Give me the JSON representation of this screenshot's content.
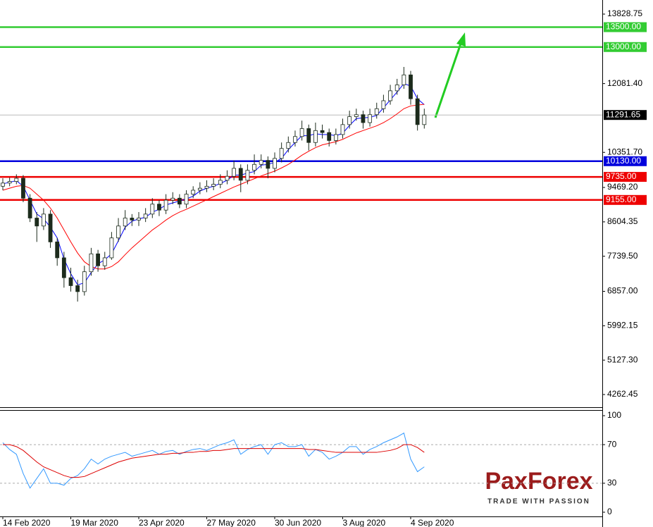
{
  "chart_data": [
    {
      "type": "candlestick",
      "categories": [
        "14 Feb 2020",
        null,
        null,
        null,
        null,
        null,
        null,
        null,
        null,
        null,
        "19 Mar 2020",
        null,
        null,
        null,
        null,
        null,
        null,
        null,
        null,
        null,
        "23 Apr 2020",
        null,
        null,
        null,
        null,
        null,
        null,
        null,
        null,
        null,
        "27 May 2020",
        null,
        null,
        null,
        null,
        null,
        null,
        null,
        null,
        null,
        "30 Jun 2020",
        null,
        null,
        null,
        null,
        null,
        null,
        null,
        null,
        null,
        "3 Aug 2020",
        null,
        null,
        null,
        null,
        null,
        null,
        null,
        null,
        null,
        "4 Sep 2020",
        null,
        null
      ],
      "open": [
        9500,
        9580,
        9620,
        9700,
        9200,
        8700,
        8500,
        8800,
        8100,
        7700,
        7200,
        7000,
        6850,
        7350,
        7800,
        7500,
        7700,
        8200,
        8500,
        8700,
        8650,
        8700,
        8800,
        9050,
        8900,
        9150,
        9200,
        9050,
        9300,
        9400,
        9450,
        9500,
        9550,
        9650,
        9750,
        9950,
        9650,
        9900,
        10050,
        10150,
        9950,
        10200,
        10450,
        10600,
        10750,
        10950,
        10600,
        10900,
        10850,
        10650,
        10800,
        11050,
        11250,
        11300,
        11100,
        11300,
        11450,
        11650,
        11900,
        12050,
        12300,
        11700,
        11050
      ],
      "high": [
        9700,
        9720,
        9800,
        9780,
        9300,
        8850,
        8950,
        8900,
        8200,
        7850,
        7450,
        7150,
        7500,
        7950,
        7900,
        7850,
        8350,
        8700,
        8900,
        8800,
        8850,
        8950,
        9200,
        9150,
        9300,
        9350,
        9300,
        9400,
        9500,
        9600,
        9650,
        9700,
        9800,
        9900,
        10150,
        10050,
        10050,
        10300,
        10300,
        10250,
        10350,
        10600,
        10750,
        10900,
        11150,
        11050,
        11100,
        11050,
        10950,
        10950,
        11200,
        11400,
        11450,
        11400,
        11450,
        11600,
        11800,
        12050,
        12200,
        12500,
        12400,
        11800,
        11450
      ],
      "low": [
        9400,
        9500,
        9550,
        9100,
        8600,
        8100,
        8400,
        7950,
        7500,
        6950,
        6850,
        6600,
        6750,
        7250,
        7350,
        7400,
        7650,
        8100,
        8400,
        8500,
        8500,
        8600,
        8700,
        8750,
        8800,
        9050,
        8950,
        8950,
        9200,
        9300,
        9350,
        9400,
        9450,
        9550,
        9650,
        9350,
        9550,
        9800,
        9950,
        9700,
        9850,
        10100,
        10350,
        10500,
        10650,
        10400,
        10500,
        10700,
        10500,
        10550,
        10700,
        10950,
        11150,
        10950,
        11000,
        11200,
        11350,
        11550,
        11800,
        11950,
        11550,
        10900,
        10950
      ],
      "close": [
        9580,
        9620,
        9700,
        9200,
        8700,
        8500,
        8800,
        8100,
        7700,
        7200,
        7000,
        6850,
        7350,
        7800,
        7500,
        7700,
        8200,
        8500,
        8700,
        8650,
        8700,
        8800,
        9050,
        8900,
        9150,
        9200,
        9050,
        9300,
        9400,
        9450,
        9500,
        9550,
        9650,
        9750,
        9950,
        9650,
        9900,
        10050,
        10150,
        9950,
        10200,
        10450,
        10600,
        10750,
        10950,
        10600,
        10900,
        10850,
        10650,
        10800,
        11050,
        11250,
        11300,
        11100,
        11300,
        11450,
        11650,
        11900,
        12050,
        12300,
        11700,
        11050,
        11291.65
      ],
      "up_color": "#ffffff",
      "down_color": "#1c2b1c",
      "wick_color": "#1c2b1c",
      "series": [
        {
          "color": "#0000ff",
          "values": [
            9560,
            9600,
            9640,
            9500,
            9150,
            8800,
            8680,
            8470,
            8200,
            7670,
            7300,
            7020,
            7070,
            7330,
            7550,
            7650,
            7800,
            8130,
            8470,
            8620,
            8680,
            8720,
            8850,
            8920,
            9030,
            9080,
            9130,
            9180,
            9250,
            9380,
            9450,
            9500,
            9570,
            9650,
            9780,
            9780,
            9830,
            9870,
            10030,
            10050,
            10100,
            10200,
            10420,
            10600,
            10770,
            10770,
            10820,
            10800,
            10800,
            10770,
            10830,
            11030,
            11200,
            11220,
            11230,
            11280,
            11470,
            11670,
            11870,
            12080,
            12020,
            11700,
            11550
          ]
        },
        {
          "color": "#ff0000",
          "values": [
            9400,
            9450,
            9500,
            9520,
            9450,
            9300,
            9150,
            8950,
            8700,
            8400,
            8100,
            7820,
            7600,
            7480,
            7420,
            7420,
            7480,
            7600,
            7780,
            7950,
            8100,
            8250,
            8400,
            8520,
            8650,
            8760,
            8850,
            8920,
            9000,
            9080,
            9160,
            9240,
            9320,
            9400,
            9480,
            9550,
            9620,
            9690,
            9760,
            9820,
            9880,
            9960,
            10050,
            10160,
            10280,
            10380,
            10470,
            10540,
            10580,
            10620,
            10680,
            10760,
            10840,
            10900,
            10960,
            11020,
            11100,
            11200,
            11320,
            11450,
            11520,
            11540,
            11560
          ]
        }
      ],
      "ylim": [
        3943,
        14183
      ],
      "yticks": [
        13828.75,
        {
          "value": 12081.4,
          "label": "12081.40"
        },
        {
          "value": 10351.7,
          "label": "10351.70"
        },
        {
          "value": 9469.2,
          "label": "9469.20"
        },
        8604.35,
        {
          "value": 7739.5,
          "label": "7739.50"
        },
        {
          "value": 6857,
          "label": "6857.00"
        },
        5992.15,
        {
          "value": 5127.3,
          "label": "5127.30"
        },
        4262.45
      ],
      "levels": [
        {
          "value": 13500,
          "label": "13500.00",
          "color": "#33cc33"
        },
        {
          "value": 13000,
          "label": "13000.00",
          "color": "#33cc33"
        },
        {
          "value": 10130,
          "label": "10130.00",
          "color": "#0000dd"
        },
        {
          "value": 9735,
          "label": "9735.00",
          "color": "#ee0000"
        },
        {
          "value": 9155,
          "label": "9155.00",
          "color": "#ee0000"
        }
      ],
      "current_price": 11291.65
    },
    {
      "type": "line",
      "series": [
        {
          "color": "#3399ff",
          "values": [
            72,
            65,
            60,
            40,
            25,
            35,
            45,
            30,
            30,
            28,
            35,
            38,
            45,
            55,
            50,
            55,
            58,
            60,
            62,
            58,
            60,
            62,
            64,
            60,
            63,
            64,
            60,
            63,
            65,
            66,
            64,
            67,
            70,
            72,
            75,
            60,
            65,
            68,
            70,
            60,
            70,
            72,
            68,
            68,
            70,
            58,
            65,
            62,
            55,
            58,
            62,
            68,
            68,
            60,
            65,
            68,
            72,
            75,
            78,
            82,
            55,
            42,
            47
          ]
        },
        {
          "color": "#dd0000",
          "values": [
            70,
            70,
            68,
            64,
            58,
            52,
            47,
            44,
            41,
            38,
            36,
            36,
            37,
            40,
            43,
            46,
            49,
            52,
            54,
            56,
            57,
            58,
            59,
            60,
            60,
            61,
            61,
            62,
            62,
            63,
            63,
            64,
            64,
            65,
            66,
            66,
            66,
            66,
            66,
            66,
            66,
            66,
            66,
            66,
            66,
            65,
            65,
            64,
            63,
            62,
            62,
            62,
            62,
            62,
            62,
            62,
            63,
            64,
            66,
            70,
            70,
            67,
            62
          ]
        }
      ],
      "ylim": [
        0,
        100
      ],
      "yticks": [
        100,
        70,
        30,
        0
      ],
      "grid": true
    }
  ],
  "logo": {
    "name": "PaxForex",
    "tagline": "TRADE WITH PASSION"
  }
}
